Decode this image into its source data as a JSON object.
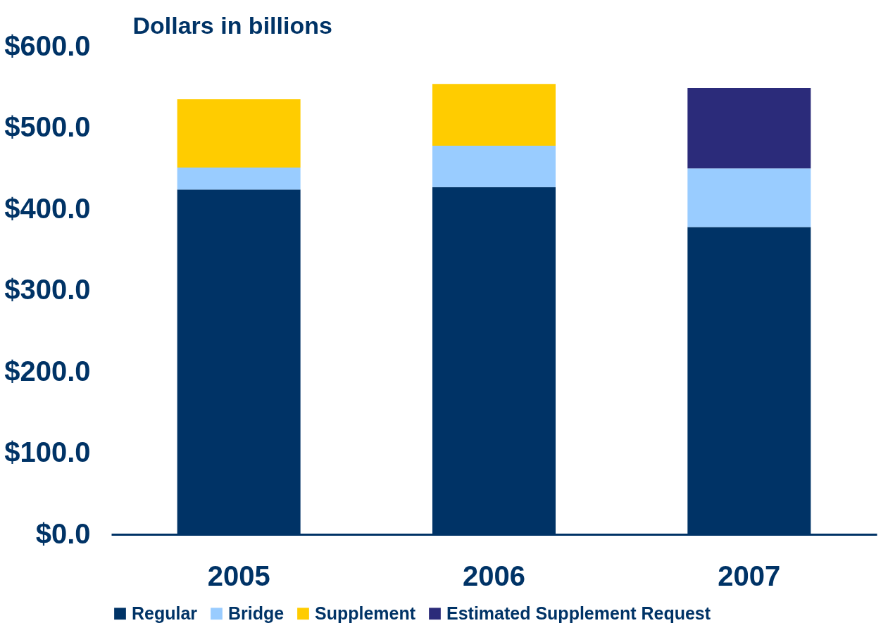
{
  "chart_data": {
    "type": "bar",
    "stacked": true,
    "ylabel": "Dollars in billions",
    "categories": [
      "2005",
      "2006",
      "2007"
    ],
    "series": [
      {
        "name": "Regular",
        "color": "#003366",
        "values": [
          424,
          427,
          378
        ]
      },
      {
        "name": "Bridge",
        "color": "#99ccff",
        "values": [
          27,
          51,
          72
        ]
      },
      {
        "name": "Supplement",
        "color": "#ffcc00",
        "values": [
          84,
          76,
          null
        ]
      },
      {
        "name": "Estimated Supplement Request",
        "color": "#2b2b7a",
        "values": [
          null,
          null,
          99
        ]
      }
    ],
    "ylim": [
      0,
      600
    ],
    "yticks": [
      {
        "value": 0,
        "label": "$0.0"
      },
      {
        "value": 100,
        "label": "$100.0"
      },
      {
        "value": 200,
        "label": "$200.0"
      },
      {
        "value": 300,
        "label": "$300.0"
      },
      {
        "value": 400,
        "label": "$400.0"
      },
      {
        "value": 500,
        "label": "$500.0"
      },
      {
        "value": 600,
        "label": "$600.0"
      }
    ],
    "grid": false,
    "legend": "bottom"
  }
}
